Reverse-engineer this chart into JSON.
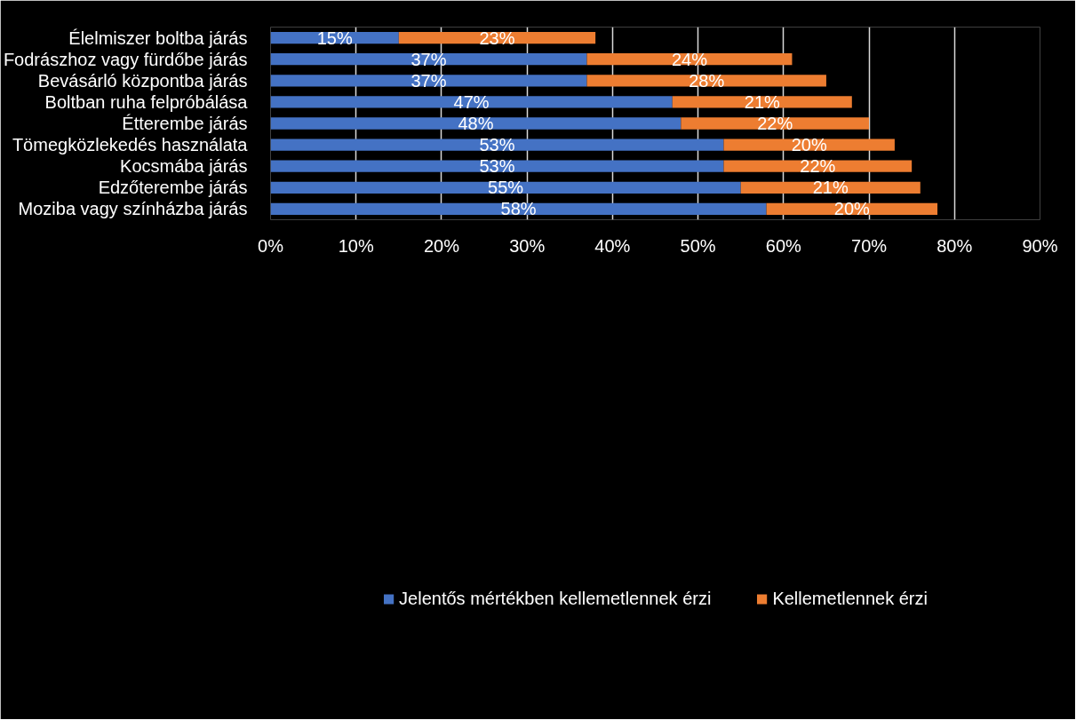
{
  "chart_data": {
    "type": "bar",
    "orientation": "horizontal",
    "stacked": true,
    "categories": [
      "Élelmiszer boltba járás",
      "Fodrászhoz vagy fürdőbe járás",
      "Bevásárló központba járás",
      "Boltban ruha felpróbálása",
      "Étterembe járás",
      "Tömegközlekedés használata",
      "Kocsmába járás",
      "Edzőterembe járás",
      "Moziba vagy színházba járás"
    ],
    "series": [
      {
        "name": "Jelentős mértékben kellemetlennek érzi",
        "color": "#4472c4",
        "values": [
          15,
          37,
          37,
          47,
          48,
          53,
          53,
          55,
          58
        ],
        "value_labels": [
          "15%",
          "37%",
          "37%",
          "47%",
          "48%",
          "53%",
          "53%",
          "55%",
          "58%"
        ]
      },
      {
        "name": "Kellemetlennek érzi",
        "color": "#ed7d31",
        "values": [
          23,
          24,
          28,
          21,
          22,
          20,
          22,
          21,
          20
        ],
        "value_labels": [
          "23%",
          "24%",
          "28%",
          "21%",
          "22%",
          "20%",
          "22%",
          "21%",
          "20%"
        ]
      }
    ],
    "xlim": [
      0,
      90
    ],
    "xticks": [
      {
        "value": 0,
        "label": "0%"
      },
      {
        "value": 10,
        "label": "10%"
      },
      {
        "value": 20,
        "label": "20%"
      },
      {
        "value": 30,
        "label": "30%"
      },
      {
        "value": 40,
        "label": "40%"
      },
      {
        "value": 50,
        "label": "50%"
      },
      {
        "value": 60,
        "label": "60%"
      },
      {
        "value": 70,
        "label": "70%"
      },
      {
        "value": 80,
        "label": "80%"
      },
      {
        "value": 90,
        "label": "90%"
      }
    ],
    "grid": "x",
    "legend": "bottom"
  }
}
